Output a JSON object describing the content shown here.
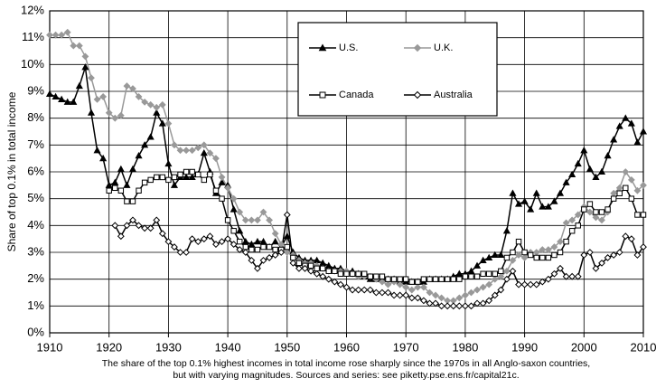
{
  "chart_data": {
    "type": "line",
    "y_label": "Share of top 0.1% in total income",
    "caption": [
      "The share of the top 0.1% highest incomes in total income rose sharply since the 1970s in all Anglo-saxon countries,",
      "but with varying magnitudes. Sources and series: see piketty.pse.ens.fr/capital21c."
    ],
    "xlim": [
      1910,
      2010
    ],
    "ylim": [
      0,
      12
    ],
    "xticks": [
      1910,
      1920,
      1930,
      1940,
      1950,
      1960,
      1970,
      1980,
      1990,
      2000,
      2010
    ],
    "yticks": [
      {
        "value": 0,
        "label": "0%"
      },
      {
        "value": 1,
        "label": "1%"
      },
      {
        "value": 2,
        "label": "2%"
      },
      {
        "value": 3,
        "label": "3%"
      },
      {
        "value": 4,
        "label": "4%"
      },
      {
        "value": 5,
        "label": "5%"
      },
      {
        "value": 6,
        "label": "6%"
      },
      {
        "value": 7,
        "label": "7%"
      },
      {
        "value": 8,
        "label": "8%"
      },
      {
        "value": 9,
        "label": "9%"
      },
      {
        "value": 10,
        "label": "10%"
      },
      {
        "value": 11,
        "label": "11%"
      },
      {
        "value": 12,
        "label": "12%"
      }
    ],
    "grid": true,
    "legend": "upper center",
    "x": [
      1910,
      1911,
      1912,
      1913,
      1914,
      1915,
      1916,
      1917,
      1918,
      1919,
      1920,
      1921,
      1922,
      1923,
      1924,
      1925,
      1926,
      1927,
      1928,
      1929,
      1930,
      1931,
      1932,
      1933,
      1934,
      1935,
      1936,
      1937,
      1938,
      1939,
      1940,
      1941,
      1942,
      1943,
      1944,
      1945,
      1946,
      1947,
      1948,
      1949,
      1950,
      1951,
      1952,
      1953,
      1954,
      1955,
      1956,
      1957,
      1958,
      1959,
      1960,
      1961,
      1962,
      1963,
      1964,
      1965,
      1966,
      1967,
      1968,
      1969,
      1970,
      1971,
      1972,
      1973,
      1974,
      1975,
      1976,
      1977,
      1978,
      1979,
      1980,
      1981,
      1982,
      1983,
      1984,
      1985,
      1986,
      1987,
      1988,
      1989,
      1990,
      1991,
      1992,
      1993,
      1994,
      1995,
      1996,
      1997,
      1998,
      1999,
      2000,
      2001,
      2002,
      2003,
      2004,
      2005,
      2006,
      2007,
      2008,
      2009,
      2010
    ],
    "series": [
      {
        "name": "U.S.",
        "color": "#000000",
        "marker": "triangle",
        "filled": true,
        "values": [
          8.9,
          8.8,
          8.7,
          8.6,
          8.6,
          9.2,
          9.9,
          8.2,
          6.8,
          6.5,
          5.5,
          5.6,
          6.1,
          5.5,
          6.1,
          6.6,
          7.0,
          7.3,
          8.2,
          7.8,
          6.3,
          5.5,
          5.8,
          5.8,
          5.8,
          5.9,
          6.7,
          6.0,
          5.2,
          5.6,
          5.5,
          4.6,
          3.8,
          3.4,
          3.3,
          3.4,
          3.4,
          3.2,
          3.4,
          3.2,
          3.6,
          3.0,
          2.8,
          2.7,
          2.7,
          2.7,
          2.6,
          2.5,
          2.4,
          2.4,
          2.3,
          2.3,
          2.2,
          2.1,
          2.0,
          2.0,
          2.0,
          2.0,
          2.0,
          1.9,
          1.9,
          1.9,
          1.9,
          1.9,
          2.0,
          2.0,
          2.0,
          2.0,
          2.1,
          2.2,
          2.2,
          2.3,
          2.5,
          2.7,
          2.8,
          2.9,
          2.9,
          3.8,
          5.2,
          4.8,
          4.9,
          4.6,
          5.2,
          4.7,
          4.7,
          4.9,
          5.2,
          5.6,
          5.9,
          6.3,
          6.8,
          6.1,
          5.8,
          6.0,
          6.6,
          7.2,
          7.7,
          8.0,
          7.8,
          7.1,
          7.5
        ]
      },
      {
        "name": "U.K.",
        "color": "#999999",
        "marker": "diamond",
        "filled": true,
        "values": [
          11.1,
          11.1,
          11.1,
          11.2,
          10.7,
          10.7,
          10.3,
          9.5,
          8.7,
          8.8,
          8.2,
          8.0,
          8.1,
          9.2,
          9.1,
          8.8,
          8.6,
          8.5,
          8.4,
          8.5,
          7.8,
          7.0,
          6.8,
          6.8,
          6.8,
          6.9,
          7.0,
          6.7,
          6.5,
          5.8,
          5.4,
          5.0,
          4.5,
          4.2,
          4.2,
          4.2,
          4.5,
          4.2,
          3.7,
          3.3,
          3.0,
          2.9,
          2.7,
          2.6,
          2.6,
          2.5,
          2.4,
          2.3,
          2.3,
          2.3,
          2.3,
          2.2,
          2.1,
          2.1,
          2.1,
          2.0,
          1.9,
          1.8,
          1.9,
          1.8,
          1.7,
          1.6,
          1.7,
          1.7,
          1.5,
          1.4,
          1.3,
          1.2,
          1.2,
          1.3,
          1.4,
          1.5,
          1.6,
          1.7,
          1.8,
          2.0,
          2.1,
          2.3,
          2.7,
          2.9,
          2.8,
          3.0,
          3.0,
          3.1,
          3.1,
          3.2,
          3.4,
          4.1,
          4.2,
          4.4,
          4.7,
          4.5,
          4.3,
          4.2,
          4.5,
          5.2,
          5.4,
          6.0,
          5.7,
          5.3,
          5.5
        ]
      },
      {
        "name": "Canada",
        "color": "#000000",
        "marker": "square",
        "filled": false,
        "values": [
          null,
          null,
          null,
          null,
          null,
          null,
          null,
          null,
          null,
          null,
          5.3,
          5.4,
          5.3,
          4.9,
          4.9,
          5.3,
          5.6,
          5.7,
          5.8,
          5.8,
          5.7,
          5.8,
          5.9,
          6.0,
          6.0,
          5.9,
          5.7,
          5.9,
          5.3,
          5.0,
          4.2,
          3.8,
          3.4,
          3.2,
          3.1,
          3.1,
          3.2,
          3.2,
          3.1,
          3.1,
          3.2,
          2.8,
          2.6,
          2.5,
          2.5,
          2.4,
          2.4,
          2.3,
          2.3,
          2.2,
          2.2,
          2.2,
          2.2,
          2.2,
          2.1,
          2.1,
          2.1,
          2.0,
          2.0,
          2.0,
          2.0,
          1.9,
          1.9,
          2.0,
          2.0,
          2.0,
          2.0,
          2.0,
          2.0,
          2.0,
          2.1,
          2.1,
          2.1,
          2.2,
          2.2,
          2.2,
          2.3,
          2.8,
          3.0,
          3.4,
          3.0,
          2.9,
          2.8,
          2.8,
          2.8,
          2.9,
          3.0,
          3.4,
          3.8,
          4.0,
          4.6,
          4.8,
          4.5,
          4.5,
          4.6,
          5.0,
          5.2,
          5.4,
          5.0,
          4.4,
          4.4
        ]
      },
      {
        "name": "Australia",
        "color": "#000000",
        "marker": "diamond",
        "filled": false,
        "values": [
          null,
          null,
          null,
          null,
          null,
          null,
          null,
          null,
          null,
          null,
          null,
          4.0,
          3.6,
          4.0,
          4.2,
          4.0,
          3.9,
          3.9,
          4.2,
          3.7,
          3.4,
          3.2,
          3.0,
          3.0,
          3.5,
          3.4,
          3.5,
          3.6,
          3.3,
          3.4,
          3.5,
          3.3,
          3.1,
          3.0,
          2.7,
          2.4,
          2.7,
          2.8,
          2.9,
          3.0,
          4.4,
          2.6,
          2.4,
          2.4,
          2.3,
          2.2,
          2.1,
          2.0,
          1.9,
          1.8,
          1.7,
          1.6,
          1.6,
          1.6,
          1.6,
          1.5,
          1.5,
          1.5,
          1.4,
          1.4,
          1.4,
          1.3,
          1.3,
          1.2,
          1.1,
          1.1,
          1.0,
          1.0,
          1.0,
          1.0,
          1.0,
          1.0,
          1.1,
          1.1,
          1.2,
          1.4,
          1.6,
          2.0,
          2.3,
          1.8,
          1.8,
          1.8,
          1.8,
          1.9,
          2.0,
          2.2,
          2.4,
          2.1,
          2.1,
          2.1,
          2.9,
          3.0,
          2.4,
          2.6,
          2.8,
          2.9,
          3.0,
          3.6,
          3.5,
          2.9,
          3.2
        ]
      }
    ]
  }
}
